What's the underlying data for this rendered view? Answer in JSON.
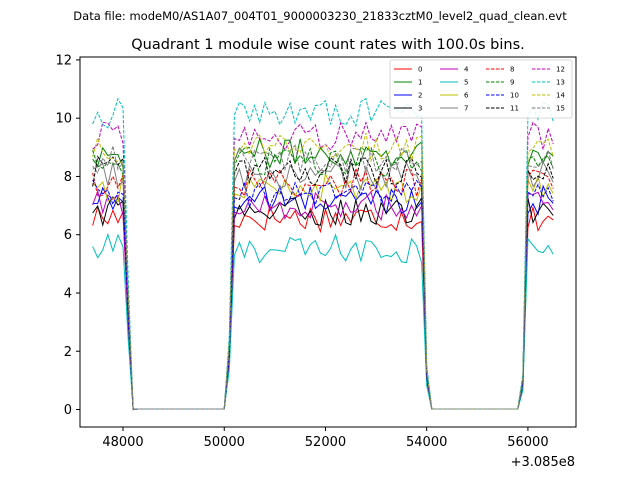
{
  "suptitle": "Data file: modeM0/AS1A07_004T01_9000003230_21833cztM0_level2_quad_clean.evt",
  "chart_data": {
    "type": "line",
    "title": "Quadrant 1 module wise count rates with 100.0s bins.",
    "xlabel": "",
    "ylabel": "",
    "x_offset_label": "+3.085e8",
    "xlim": [
      47150,
      56950
    ],
    "ylim": [
      -0.6,
      12.1
    ],
    "xticks": [
      48000,
      50000,
      52000,
      54000,
      56000
    ],
    "xtick_labels": [
      "48000",
      "50000",
      "52000",
      "54000",
      "56000"
    ],
    "yticks": [
      0,
      2,
      4,
      6,
      8,
      10,
      12
    ],
    "ytick_labels": [
      "0",
      "2",
      "4",
      "6",
      "8",
      "10",
      "12"
    ],
    "legend_position": "upper-right",
    "segments": [
      {
        "start": 47400,
        "end": 48200
      },
      {
        "start": 50100,
        "end": 54000
      },
      {
        "start": 55900,
        "end": 56500
      }
    ],
    "series": [
      {
        "name": "0",
        "color": "#ff0000",
        "dash": false,
        "level": 6.6
      },
      {
        "name": "1",
        "color": "#008000",
        "dash": false,
        "level": 8.8
      },
      {
        "name": "2",
        "color": "#0000ff",
        "dash": false,
        "level": 7.2
      },
      {
        "name": "3",
        "color": "#000000",
        "dash": false,
        "level": 6.8
      },
      {
        "name": "4",
        "color": "#bf00bf",
        "dash": false,
        "level": 7.0
      },
      {
        "name": "5",
        "color": "#00bfbf",
        "dash": false,
        "level": 5.5
      },
      {
        "name": "6",
        "color": "#bfbf00",
        "dash": false,
        "level": 7.6
      },
      {
        "name": "7",
        "color": "#808080",
        "dash": false,
        "level": 8.0
      },
      {
        "name": "8",
        "color": "#ff0000",
        "dash": true,
        "level": 7.8
      },
      {
        "name": "9",
        "color": "#008000",
        "dash": true,
        "level": 8.5
      },
      {
        "name": "10",
        "color": "#0000ff",
        "dash": true,
        "level": 7.4
      },
      {
        "name": "11",
        "color": "#000000",
        "dash": true,
        "level": 8.2
      },
      {
        "name": "12",
        "color": "#bf00bf",
        "dash": true,
        "level": 9.4
      },
      {
        "name": "13",
        "color": "#00bfbf",
        "dash": true,
        "level": 10.2
      },
      {
        "name": "14",
        "color": "#bfbf00",
        "dash": true,
        "level": 9.0
      },
      {
        "name": "15",
        "color": "#808080",
        "dash": true,
        "level": 8.6
      }
    ]
  }
}
